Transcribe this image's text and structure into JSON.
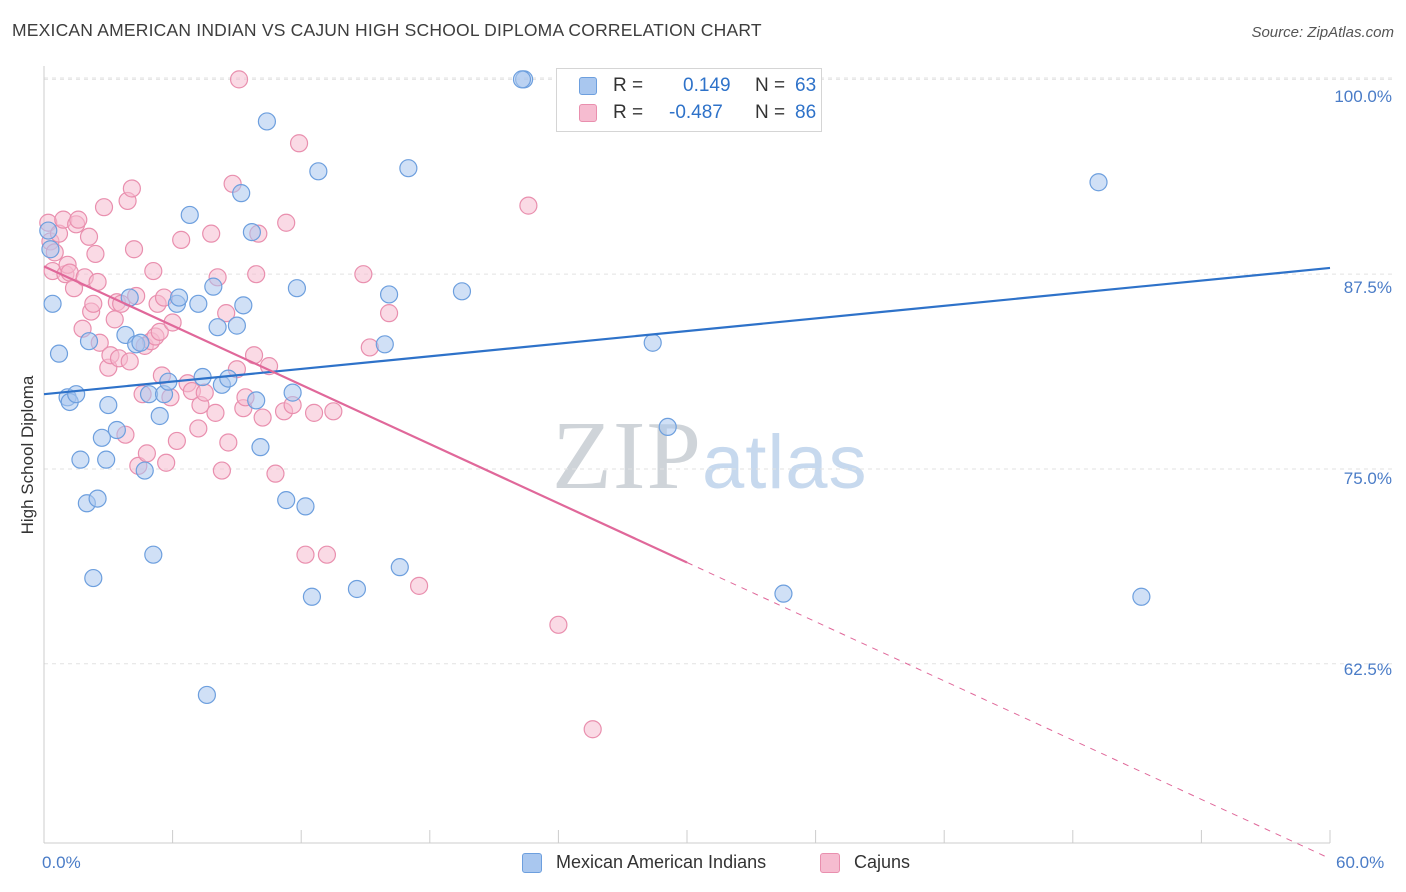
{
  "header": {
    "title": "MEXICAN AMERICAN INDIAN VS CAJUN HIGH SCHOOL DIPLOMA CORRELATION CHART",
    "source": "Source: ZipAtlas.com"
  },
  "watermark": {
    "zip": "ZIP",
    "atlas": "atlas"
  },
  "legend": {
    "rows": [
      {
        "r_label": "R =",
        "r_value": "0.149",
        "n_label": "N =",
        "n_value": "63"
      },
      {
        "r_label": "R =",
        "r_value": "-0.487",
        "n_label": "N =",
        "n_value": "86"
      }
    ]
  },
  "bottom_legend": {
    "items": [
      {
        "label": "Mexican American Indians"
      },
      {
        "label": "Cajuns"
      }
    ]
  },
  "colors": {
    "blue_fill": "#a9c7ef",
    "blue_stroke": "#6d9fde",
    "blue_line": "#2e72c9",
    "pink_fill": "#f6bcd0",
    "pink_stroke": "#e98fae",
    "pink_line": "#e0689a",
    "tick_text": "#4a7cc7",
    "grid": "#e2e2e2"
  },
  "chart_data": {
    "type": "scatter",
    "title": "MEXICAN AMERICAN INDIAN VS CAJUN HIGH SCHOOL DIPLOMA CORRELATION CHART",
    "xlabel": "",
    "ylabel": "High School Diploma",
    "xlim": [
      0,
      60
    ],
    "ylim": [
      51,
      101.5
    ],
    "x_tick_labels": [
      "0.0%",
      "60.0%"
    ],
    "y_ticks": [
      62.5,
      75.0,
      87.5,
      100.0
    ],
    "y_tick_labels": [
      "62.5%",
      "75.0%",
      "87.5%",
      "100.0%"
    ],
    "grid": "horizontal dashed",
    "legend_position": "top-center",
    "series": [
      {
        "name": "Mexican American Indians",
        "r": 0.149,
        "n": 63,
        "trend": {
          "x": [
            0,
            60
          ],
          "y": [
            79.8,
            87.9
          ]
        },
        "points": [
          [
            0.2,
            90.3
          ],
          [
            0.3,
            89.1
          ],
          [
            0.4,
            85.6
          ],
          [
            0.7,
            82.4
          ],
          [
            1.1,
            79.6
          ],
          [
            1.2,
            79.3
          ],
          [
            1.5,
            79.8
          ],
          [
            1.7,
            75.6
          ],
          [
            2.0,
            72.8
          ],
          [
            2.1,
            83.2
          ],
          [
            2.3,
            68.0
          ],
          [
            2.5,
            73.1
          ],
          [
            2.7,
            77.0
          ],
          [
            2.9,
            75.6
          ],
          [
            3.0,
            79.1
          ],
          [
            3.4,
            77.5
          ],
          [
            3.8,
            83.6
          ],
          [
            4.0,
            86.0
          ],
          [
            4.3,
            83.0
          ],
          [
            4.5,
            83.1
          ],
          [
            4.7,
            74.9
          ],
          [
            4.9,
            79.8
          ],
          [
            5.1,
            69.5
          ],
          [
            5.4,
            78.4
          ],
          [
            5.6,
            79.8
          ],
          [
            5.8,
            80.6
          ],
          [
            6.2,
            85.6
          ],
          [
            6.3,
            86.0
          ],
          [
            6.8,
            91.3
          ],
          [
            7.2,
            85.6
          ],
          [
            7.4,
            80.9
          ],
          [
            7.6,
            60.5
          ],
          [
            7.9,
            86.7
          ],
          [
            8.1,
            84.1
          ],
          [
            8.3,
            80.4
          ],
          [
            8.6,
            80.8
          ],
          [
            9.0,
            84.2
          ],
          [
            9.2,
            92.7
          ],
          [
            9.3,
            85.5
          ],
          [
            9.7,
            90.2
          ],
          [
            9.9,
            79.4
          ],
          [
            10.1,
            76.4
          ],
          [
            10.4,
            97.3
          ],
          [
            11.3,
            73.0
          ],
          [
            11.6,
            79.9
          ],
          [
            11.8,
            86.6
          ],
          [
            12.2,
            72.6
          ],
          [
            12.5,
            66.8
          ],
          [
            12.8,
            94.1
          ],
          [
            14.6,
            67.3
          ],
          [
            15.9,
            83.0
          ],
          [
            16.1,
            86.2
          ],
          [
            16.6,
            68.7
          ],
          [
            17.0,
            94.3
          ],
          [
            19.5,
            86.4
          ],
          [
            22.4,
            100.0
          ],
          [
            22.3,
            100.0
          ],
          [
            26.9,
            100.0
          ],
          [
            28.4,
            83.1
          ],
          [
            29.1,
            77.7
          ],
          [
            34.5,
            67.0
          ],
          [
            49.2,
            93.4
          ],
          [
            51.2,
            66.8
          ]
        ]
      },
      {
        "name": "Cajuns",
        "r": -0.487,
        "n": 86,
        "trend": {
          "x": [
            0,
            30
          ],
          "y": [
            88.0,
            69.0
          ]
        },
        "trend_dashed": {
          "x": [
            30,
            60
          ],
          "y": [
            69.0,
            50.0
          ]
        },
        "points": [
          [
            0.2,
            90.8
          ],
          [
            0.3,
            89.6
          ],
          [
            0.4,
            87.7
          ],
          [
            0.5,
            88.9
          ],
          [
            0.7,
            90.1
          ],
          [
            0.9,
            91.0
          ],
          [
            1.0,
            87.5
          ],
          [
            1.1,
            88.1
          ],
          [
            1.2,
            87.6
          ],
          [
            1.4,
            86.6
          ],
          [
            1.5,
            90.7
          ],
          [
            1.6,
            91.0
          ],
          [
            1.8,
            84.0
          ],
          [
            1.9,
            87.3
          ],
          [
            2.1,
            89.9
          ],
          [
            2.2,
            85.1
          ],
          [
            2.3,
            85.6
          ],
          [
            2.4,
            88.8
          ],
          [
            2.5,
            87.0
          ],
          [
            2.6,
            83.1
          ],
          [
            2.8,
            91.8
          ],
          [
            3.0,
            81.5
          ],
          [
            3.1,
            82.3
          ],
          [
            3.3,
            84.6
          ],
          [
            3.4,
            85.7
          ],
          [
            3.5,
            82.1
          ],
          [
            3.6,
            85.6
          ],
          [
            3.8,
            77.2
          ],
          [
            3.9,
            92.2
          ],
          [
            4.0,
            81.9
          ],
          [
            4.1,
            93.0
          ],
          [
            4.2,
            89.1
          ],
          [
            4.3,
            86.1
          ],
          [
            4.4,
            75.2
          ],
          [
            4.6,
            79.8
          ],
          [
            4.7,
            82.9
          ],
          [
            4.8,
            76.0
          ],
          [
            5.0,
            83.2
          ],
          [
            5.1,
            87.7
          ],
          [
            5.2,
            83.5
          ],
          [
            5.3,
            85.6
          ],
          [
            5.4,
            83.8
          ],
          [
            5.5,
            81.0
          ],
          [
            5.6,
            86.0
          ],
          [
            5.7,
            75.4
          ],
          [
            5.9,
            79.6
          ],
          [
            6.0,
            84.4
          ],
          [
            6.2,
            76.8
          ],
          [
            6.4,
            89.7
          ],
          [
            6.7,
            80.5
          ],
          [
            6.9,
            80.0
          ],
          [
            7.2,
            77.6
          ],
          [
            7.3,
            79.1
          ],
          [
            7.5,
            79.9
          ],
          [
            7.8,
            90.1
          ],
          [
            8.0,
            78.6
          ],
          [
            8.1,
            87.3
          ],
          [
            8.3,
            74.9
          ],
          [
            8.5,
            85.0
          ],
          [
            8.6,
            76.7
          ],
          [
            8.8,
            93.3
          ],
          [
            9.0,
            81.4
          ],
          [
            9.1,
            100.0
          ],
          [
            9.3,
            78.9
          ],
          [
            9.4,
            79.6
          ],
          [
            9.8,
            82.3
          ],
          [
            9.9,
            87.5
          ],
          [
            10.0,
            90.1
          ],
          [
            10.2,
            78.3
          ],
          [
            10.5,
            81.6
          ],
          [
            10.8,
            74.7
          ],
          [
            11.2,
            78.7
          ],
          [
            11.3,
            90.8
          ],
          [
            11.6,
            79.1
          ],
          [
            11.9,
            95.9
          ],
          [
            12.2,
            69.5
          ],
          [
            12.6,
            78.6
          ],
          [
            13.2,
            69.5
          ],
          [
            13.5,
            78.7
          ],
          [
            14.9,
            87.5
          ],
          [
            15.2,
            82.8
          ],
          [
            16.1,
            85.0
          ],
          [
            17.5,
            67.5
          ],
          [
            22.6,
            91.9
          ],
          [
            24.0,
            65.0
          ],
          [
            25.6,
            58.3
          ]
        ]
      }
    ]
  }
}
